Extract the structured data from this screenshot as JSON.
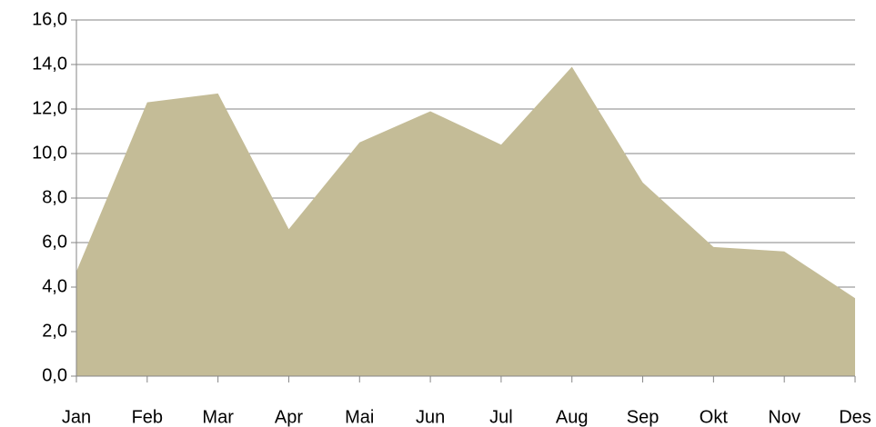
{
  "chart_data": {
    "type": "area",
    "categories": [
      "Jan",
      "Feb",
      "Mar",
      "Apr",
      "Mai",
      "Jun",
      "Jul",
      "Aug",
      "Sep",
      "Okt",
      "Nov",
      "Des"
    ],
    "values": [
      4.7,
      12.3,
      12.7,
      6.6,
      10.5,
      11.9,
      10.4,
      13.9,
      8.7,
      5.8,
      5.6,
      3.5
    ],
    "color": "#c4bc97",
    "ylim": [
      0,
      16
    ],
    "yticks": [
      {
        "value": 0,
        "label": "0,0"
      },
      {
        "value": 2,
        "label": "2,0"
      },
      {
        "value": 4,
        "label": "4,0"
      },
      {
        "value": 6,
        "label": "6,0"
      },
      {
        "value": 8,
        "label": "8,0"
      },
      {
        "value": 10,
        "label": "10,0"
      },
      {
        "value": 12,
        "label": "12,0"
      },
      {
        "value": 14,
        "label": "14,0"
      },
      {
        "value": 16,
        "label": "16,0"
      }
    ],
    "grid": true
  }
}
